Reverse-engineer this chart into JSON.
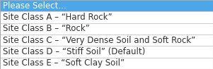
{
  "items": [
    "Please Select...",
    "Site Class A – “Hard Rock”",
    "Site Class B – “Rock”",
    "Site Class C – “Very Dense Soil and Soft Rock”",
    "Site Class D – “Stiff Soil” (Default)",
    "Site Class E – “Soft Clay Soil”"
  ],
  "selected_index": 0,
  "selected_bg": "#4DA6E8",
  "selected_fg": "#FFFFFF",
  "normal_bg": "#FFFFFF",
  "normal_fg": "#333333",
  "border_color": "#AAAAAA",
  "font_size": 8.5,
  "fig_width": 3.01,
  "fig_height": 0.98
}
